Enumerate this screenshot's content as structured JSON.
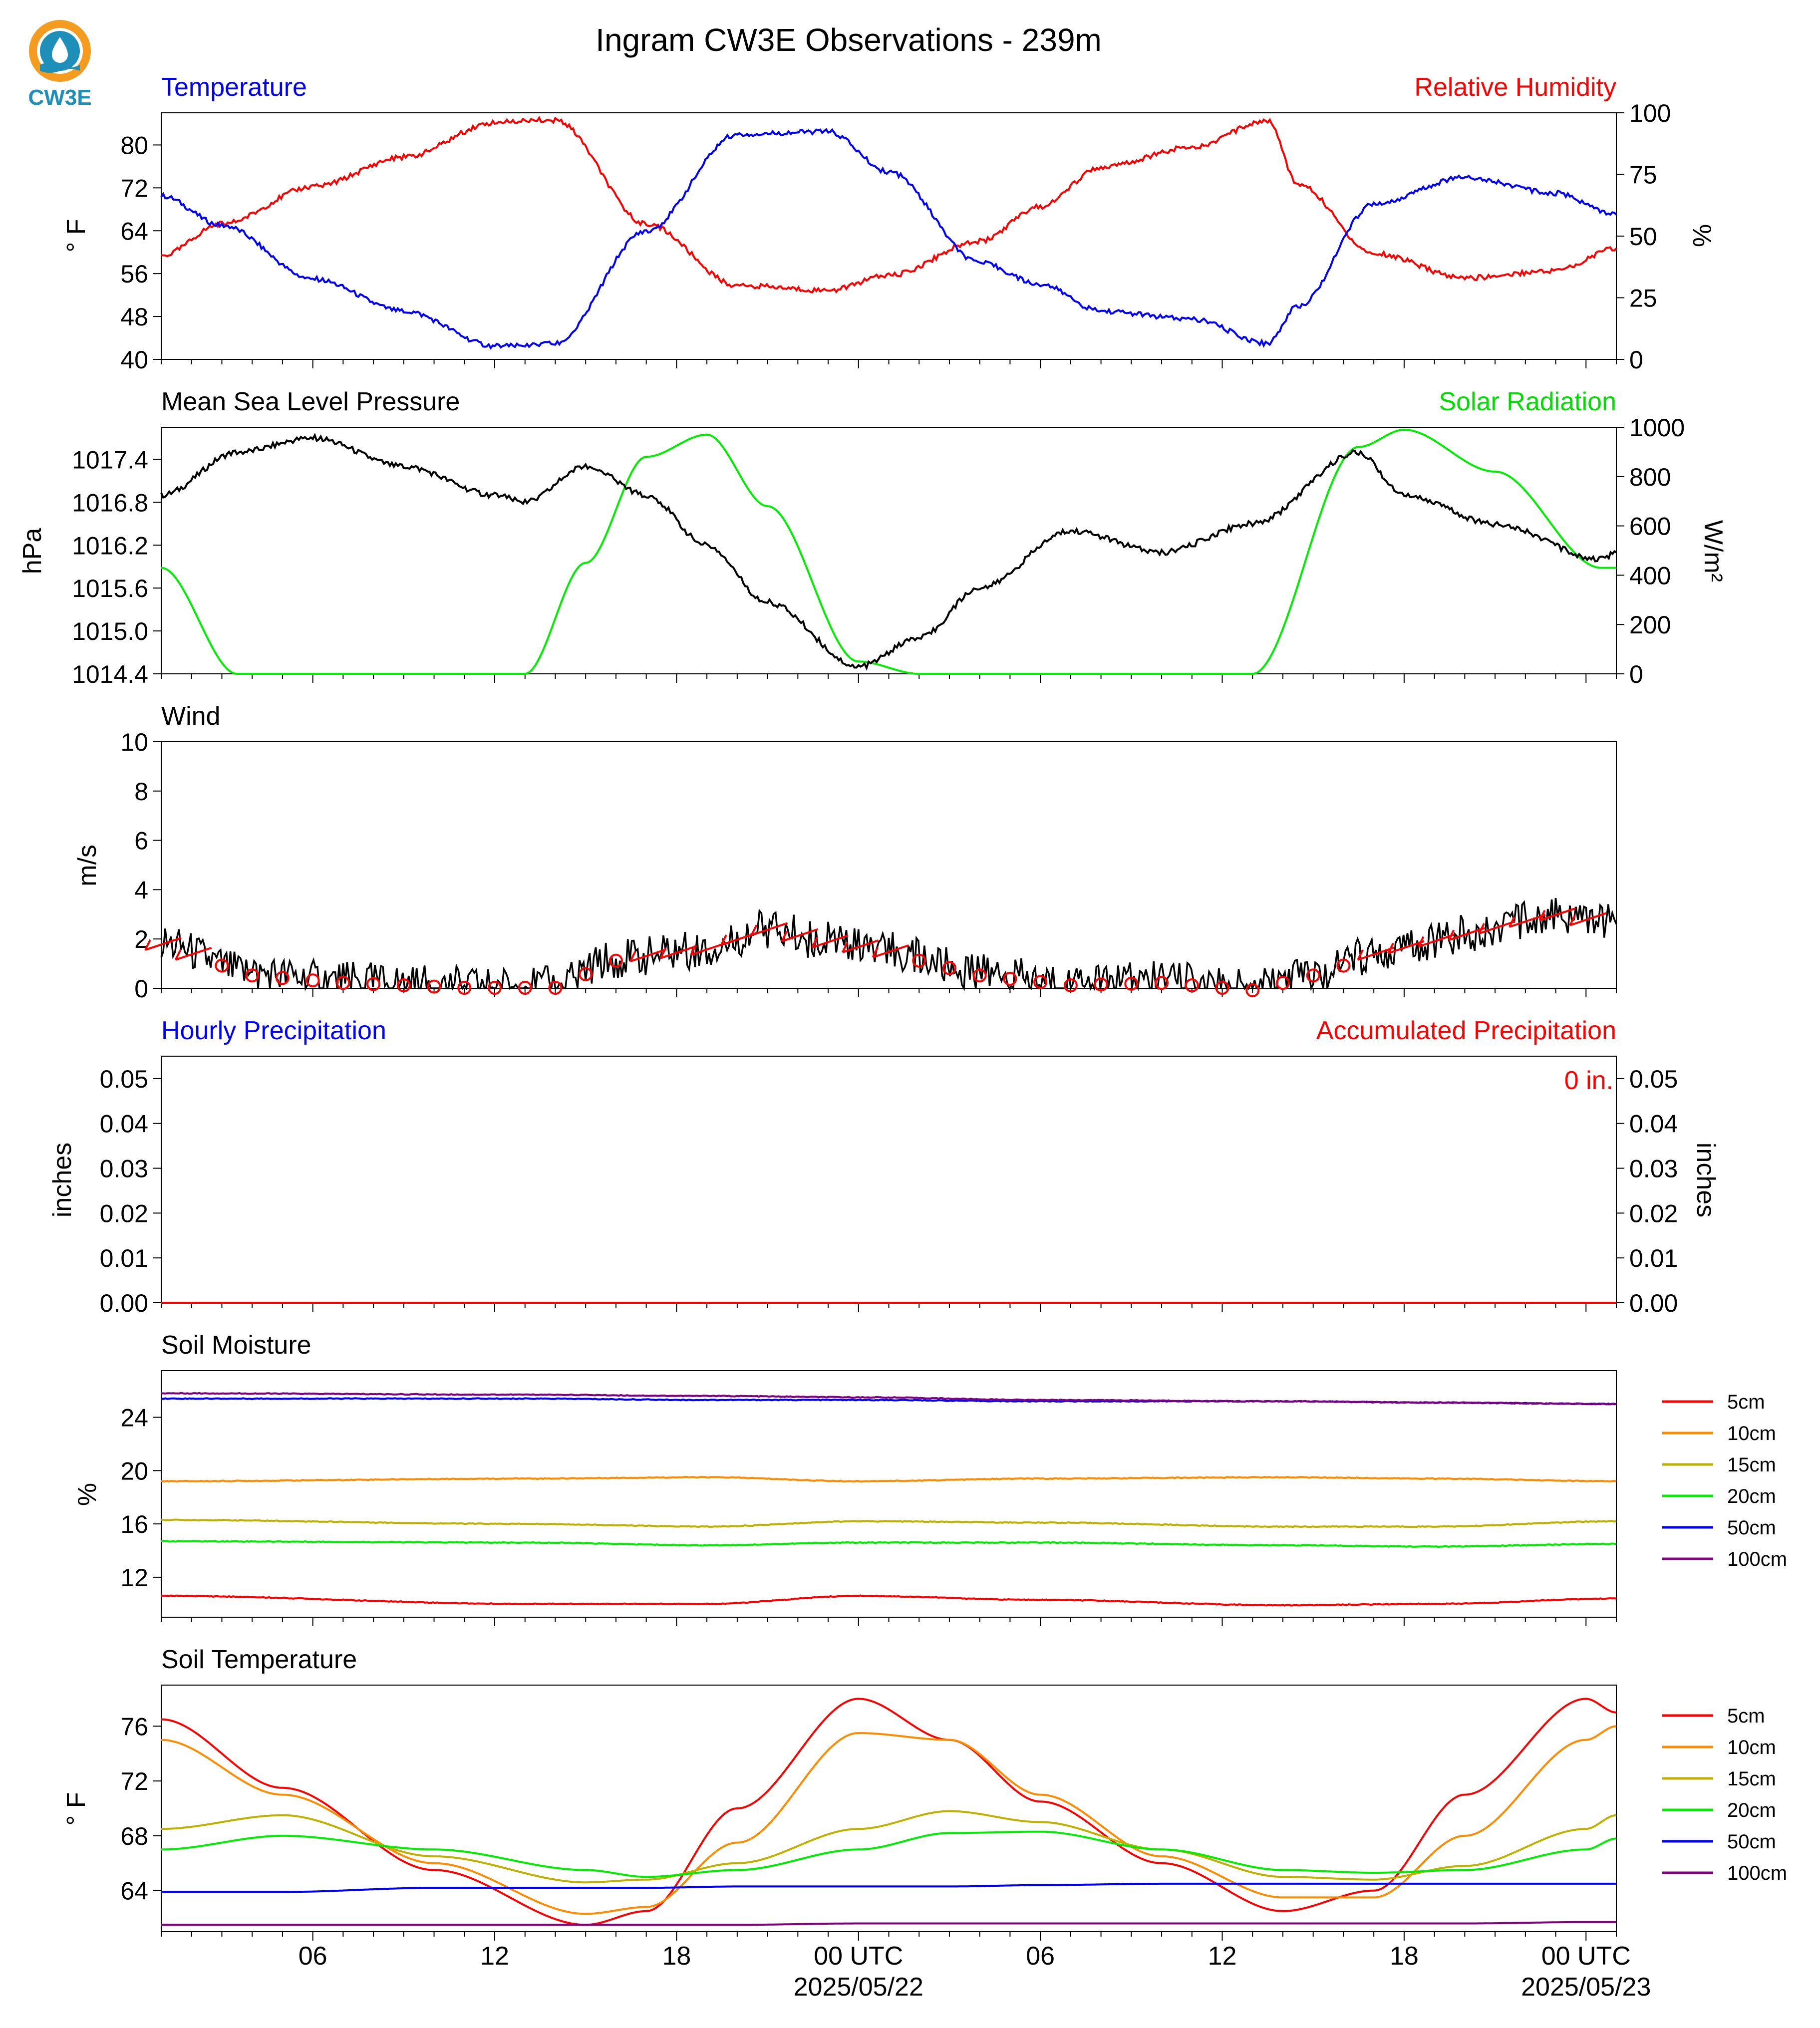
{
  "header": {
    "title": "Ingram CW3E Observations - 239m",
    "logo_text": "CW3E"
  },
  "panels": {
    "temp_rh": {
      "title_left": "Temperature",
      "title_right": "Relative Humidity",
      "ylabel_left": "° F",
      "ylabel_right": "%",
      "colors": {
        "left": "#0000ff",
        "right": "#ff0000"
      }
    },
    "pressure_solar": {
      "title_left": "Mean Sea Level Pressure",
      "title_right": "Solar Radiation",
      "ylabel_left": "hPa",
      "ylabel_right": "W/m²",
      "colors": {
        "left": "#000000",
        "right": "#00ff00"
      }
    },
    "wind": {
      "title_left": "Wind",
      "ylabel_left": "m/s"
    },
    "precip": {
      "title_left": "Hourly Precipitation",
      "title_right": "Accumulated Precipitation",
      "ylabel_left": "inches",
      "ylabel_right": "inches",
      "annotation": "0 in.",
      "colors": {
        "left": "#0000ff",
        "right": "#ff0000"
      }
    },
    "soil_moisture": {
      "title_left": "Soil Moisture",
      "ylabel_left": "%"
    },
    "soil_temp": {
      "title_left": "Soil Temperature",
      "ylabel_left": "° F"
    }
  },
  "legend": [
    {
      "label": "5cm",
      "color": "#ff0000"
    },
    {
      "label": "10cm",
      "color": "#ff8c00"
    },
    {
      "label": "15cm",
      "color": "#c0b000"
    },
    {
      "label": "20cm",
      "color": "#00ee00"
    },
    {
      "label": "50cm",
      "color": "#0000ff"
    },
    {
      "label": "100cm",
      "color": "#800080"
    }
  ],
  "x_axis": {
    "tick_labels": [
      "06",
      "12",
      "18",
      "00 UTC",
      "06",
      "12",
      "18",
      "00 UTC"
    ],
    "date_labels": [
      "2025/05/22",
      "2025/05/23"
    ]
  },
  "chart_data": [
    {
      "type": "line",
      "title": "Temperature",
      "xlabel": "",
      "ylabel": "° F",
      "ylim": [
        40,
        86
      ],
      "yticks": [
        40,
        48,
        56,
        64,
        72,
        80
      ],
      "x": [
        "2025-05-21 01:00",
        "2025-05-21 03:00",
        "2025-05-21 06:00",
        "2025-05-21 09:00",
        "2025-05-21 12:00",
        "2025-05-21 13:00",
        "2025-05-21 14:00",
        "2025-05-21 17:00",
        "2025-05-21 20:00",
        "2025-05-21 23:00",
        "2025-05-22 01:00",
        "2025-05-22 04:00",
        "2025-05-22 06:00",
        "2025-05-22 08:00",
        "2025-05-22 11:00",
        "2025-05-22 13:30",
        "2025-05-22 14:30",
        "2025-05-22 17:00",
        "2025-05-22 20:00",
        "2025-05-22 23:00",
        "2025-05-23 01:00"
      ],
      "series": [
        {
          "name": "Temperature",
          "values": [
            70.5,
            65,
            55,
            49,
            42.5,
            42.5,
            43,
            64,
            82,
            82.5,
            75,
            58,
            54,
            49,
            47.5,
            43,
            50,
            69,
            74,
            71,
            67
          ]
        }
      ],
      "secondary": {
        "ylabel": "%",
        "ylim": [
          0,
          100
        ],
        "yticks": [
          0,
          25,
          50,
          75,
          100
        ],
        "series": [
          {
            "name": "Relative Humidity",
            "values": [
              42,
              55,
              70,
              82,
              96,
              97,
              97,
              55,
              30,
              28,
              34,
              48,
              62,
              78,
              86,
              97,
              71,
              43,
              33,
              36,
              45
            ]
          }
        ]
      }
    },
    {
      "type": "line",
      "title": "Mean Sea Level Pressure",
      "xlabel": "",
      "ylabel": "hPa",
      "ylim": [
        1014.4,
        1017.85
      ],
      "yticks": [
        1014.4,
        1015.0,
        1015.6,
        1016.2,
        1016.8,
        1017.4
      ],
      "x": [
        "2025-05-21 01:00",
        "2025-05-21 03:30",
        "2025-05-21 06:00",
        "2025-05-21 09:00",
        "2025-05-21 12:00",
        "2025-05-21 13:00",
        "2025-05-21 15:00",
        "2025-05-21 17:00",
        "2025-05-21 19:00",
        "2025-05-21 21:00",
        "2025-05-22 00:00",
        "2025-05-22 02:00",
        "2025-05-22 04:00",
        "2025-05-22 07:00",
        "2025-05-22 10:00",
        "2025-05-22 13:00",
        "2025-05-22 16:30",
        "2025-05-22 18:00",
        "2025-05-22 21:00",
        "2025-05-23 00:30",
        "2025-05-23 01:00"
      ],
      "series": [
        {
          "name": "Mean Sea Level Pressure",
          "values": [
            1016.9,
            1017.5,
            1017.7,
            1017.3,
            1016.9,
            1016.8,
            1017.3,
            1016.9,
            1016.2,
            1015.4,
            1014.5,
            1014.9,
            1015.6,
            1016.4,
            1016.1,
            1016.5,
            1017.5,
            1016.9,
            1016.5,
            1016.0,
            1016.1
          ]
        }
      ],
      "secondary": {
        "ylabel": "W/m²",
        "ylim": [
          0,
          1000
        ],
        "yticks": [
          0,
          200,
          400,
          600,
          800,
          1000
        ],
        "series": [
          {
            "name": "Solar Radiation",
            "values": [
              430,
              0,
              0,
              0,
              0,
              0,
              450,
              880,
              970,
              680,
              50,
              0,
              0,
              0,
              0,
              0,
              920,
              990,
              820,
              430,
              430
            ]
          }
        ]
      }
    },
    {
      "type": "line",
      "title": "Wind",
      "xlabel": "",
      "ylabel": "m/s",
      "ylim": [
        0,
        10
      ],
      "yticks": [
        0,
        2,
        4,
        6,
        8,
        10
      ],
      "x": [
        "2025-05-21 01:00",
        "2025-05-21 04:00",
        "2025-05-21 07:00",
        "2025-05-21 11:00",
        "2025-05-21 14:00",
        "2025-05-21 16:00",
        "2025-05-21 19:00",
        "2025-05-21 21:00",
        "2025-05-21 23:00",
        "2025-05-22 01:00",
        "2025-05-22 04:00",
        "2025-05-22 07:00",
        "2025-05-22 10:00",
        "2025-05-22 13:00",
        "2025-05-22 15:00",
        "2025-05-22 17:00",
        "2025-05-22 20:00",
        "2025-05-22 23:00",
        "2025-05-23 01:00"
      ],
      "series": [
        {
          "name": "Wind",
          "values": [
            1.8,
            0.6,
            0.3,
            0.1,
            0.1,
            1.2,
            1.6,
            2.4,
            1.9,
            1.5,
            0.6,
            0.2,
            0.3,
            0.0,
            0.6,
            1.4,
            2.2,
            3.0,
            2.6
          ]
        }
      ]
    },
    {
      "type": "bar",
      "title": "Hourly Precipitation",
      "xlabel": "",
      "ylabel": "inches",
      "ylim": [
        0,
        0.055
      ],
      "yticks": [
        0.0,
        0.01,
        0.02,
        0.03,
        0.04,
        0.05
      ],
      "series": [
        {
          "name": "Hourly Precipitation",
          "values": [
            0
          ]
        },
        {
          "name": "Accumulated Precipitation",
          "values": [
            0
          ]
        }
      ]
    },
    {
      "type": "line",
      "title": "Soil Moisture",
      "xlabel": "",
      "ylabel": "%",
      "ylim": [
        9,
        27.5
      ],
      "yticks": [
        12,
        16,
        20,
        24
      ],
      "x": [
        "2025-05-21 01:00",
        "2025-05-21 13:00",
        "2025-05-21 19:00",
        "2025-05-22 00:00",
        "2025-05-22 06:00",
        "2025-05-22 14:00",
        "2025-05-22 19:00",
        "2025-05-23 01:00"
      ],
      "series": [
        {
          "name": "5cm",
          "values": [
            10.6,
            10.0,
            10.0,
            10.6,
            10.3,
            9.9,
            10.0,
            10.4
          ]
        },
        {
          "name": "10cm",
          "values": [
            19.2,
            19.4,
            19.5,
            19.2,
            19.4,
            19.5,
            19.4,
            19.2
          ]
        },
        {
          "name": "15cm",
          "values": [
            16.3,
            16.0,
            15.8,
            16.2,
            16.1,
            15.8,
            15.8,
            16.2
          ]
        },
        {
          "name": "20cm",
          "values": [
            14.7,
            14.6,
            14.4,
            14.6,
            14.6,
            14.4,
            14.3,
            14.5
          ]
        },
        {
          "name": "50cm",
          "values": [
            25.4,
            25.4,
            25.3,
            25.3,
            25.2,
            25.2,
            25.1,
            25.0
          ]
        },
        {
          "name": "100cm",
          "values": [
            25.8,
            25.7,
            25.6,
            25.5,
            25.3,
            25.2,
            25.1,
            25.0
          ]
        }
      ]
    },
    {
      "type": "line",
      "title": "Soil Temperature",
      "xlabel": "",
      "ylabel": "° F",
      "ylim": [
        61,
        79
      ],
      "yticks": [
        64,
        68,
        72,
        76
      ],
      "x": [
        "2025-05-21 01:00",
        "2025-05-21 05:00",
        "2025-05-21 10:00",
        "2025-05-21 15:00",
        "2025-05-21 17:00",
        "2025-05-21 20:00",
        "2025-05-22 00:00",
        "2025-05-22 03:00",
        "2025-05-22 06:00",
        "2025-05-22 10:00",
        "2025-05-22 14:00",
        "2025-05-22 17:00",
        "2025-05-22 20:00",
        "2025-05-23 00:00",
        "2025-05-23 01:00"
      ],
      "series": [
        {
          "name": "5cm",
          "values": [
            76.5,
            71.5,
            65.5,
            61.5,
            62.5,
            70.0,
            78.0,
            75.0,
            70.5,
            66.0,
            62.5,
            64.0,
            71.0,
            78.0,
            77.0
          ]
        },
        {
          "name": "10cm",
          "values": [
            75.0,
            71.0,
            66.0,
            62.3,
            62.8,
            67.5,
            75.5,
            75.0,
            71.0,
            66.5,
            63.5,
            63.5,
            68.0,
            75.0,
            76.0
          ]
        },
        {
          "name": "15cm",
          "values": [
            68.5,
            69.5,
            66.5,
            64.6,
            64.8,
            66.0,
            68.5,
            69.8,
            69.0,
            67.0,
            65.0,
            64.8,
            65.8,
            68.5,
            69.5
          ]
        },
        {
          "name": "20cm",
          "values": [
            67.0,
            68.0,
            67.0,
            65.5,
            65.0,
            65.5,
            67.0,
            68.2,
            68.3,
            67.0,
            65.5,
            65.3,
            65.5,
            67.0,
            67.8
          ]
        },
        {
          "name": "50cm",
          "values": [
            63.9,
            63.9,
            64.2,
            64.2,
            64.2,
            64.3,
            64.3,
            64.3,
            64.4,
            64.5,
            64.5,
            64.5,
            64.5,
            64.5,
            64.5
          ]
        },
        {
          "name": "100cm",
          "values": [
            61.5,
            61.5,
            61.5,
            61.5,
            61.5,
            61.5,
            61.6,
            61.6,
            61.6,
            61.6,
            61.6,
            61.6,
            61.6,
            61.7,
            61.7
          ]
        }
      ]
    }
  ]
}
